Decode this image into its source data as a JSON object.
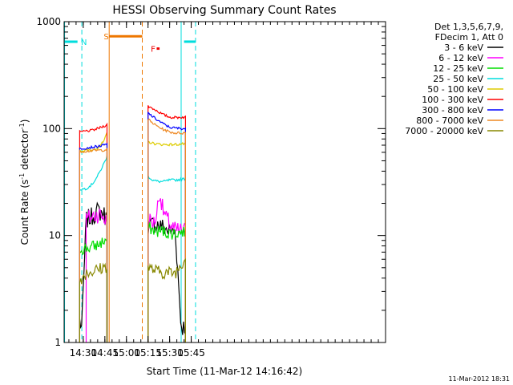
{
  "chart_data": {
    "type": "line",
    "title": "HESSI Observing Summary Count Rates",
    "xlabel": "Start Time (11-Mar-12 14:16:42)",
    "ylabel_prefix": "Count Rate (s",
    "ylabel_sup1": "-1",
    "ylabel_mid": " detector",
    "ylabel_sup2": "-1",
    "ylabel_suffix": ")",
    "yscale": "log",
    "ylim": [
      1,
      1000
    ],
    "xlim_min": [
      856.7,
      1080
    ],
    "xticks": [
      {
        "t": 870,
        "label": "14:30"
      },
      {
        "t": 885,
        "label": "14:45"
      },
      {
        "t": 900,
        "label": "15:00"
      },
      {
        "t": 915,
        "label": "15:15"
      },
      {
        "t": 930,
        "label": "15:30"
      },
      {
        "t": 945,
        "label": "15:45"
      }
    ],
    "yticks": [
      {
        "v": 1,
        "label": "1"
      },
      {
        "v": 10,
        "label": "10"
      },
      {
        "v": 100,
        "label": "100"
      },
      {
        "v": 1000,
        "label": "1000"
      }
    ],
    "legend": {
      "header": [
        "Det 1,3,5,6,7,9,",
        "FDecim 1, Att 0"
      ],
      "placement": "right"
    },
    "series": [
      {
        "name": "3 - 6 keV",
        "color": "#000000",
        "seg1": [
          [
            867.5,
            1.6
          ],
          [
            869,
            1.4
          ],
          [
            872,
            14
          ],
          [
            876,
            15
          ],
          [
            880,
            17
          ],
          [
            884,
            16
          ],
          [
            886.5,
            14
          ]
        ],
        "seg2": [
          [
            915,
            12
          ],
          [
            920,
            13
          ],
          [
            925,
            12
          ],
          [
            930,
            11
          ],
          [
            934,
            11
          ],
          [
            938,
            1.4
          ],
          [
            941,
            1.4
          ]
        ]
      },
      {
        "name": "6 - 12 keV",
        "color": "#ff00ff",
        "seg1": [
          [
            872,
            14
          ],
          [
            876,
            15
          ],
          [
            880,
            16
          ],
          [
            884,
            15
          ],
          [
            886.5,
            13
          ]
        ],
        "seg2": [
          [
            915,
            14
          ],
          [
            919,
            13
          ],
          [
            921,
            16
          ],
          [
            923,
            26
          ],
          [
            925,
            18
          ],
          [
            928,
            14
          ],
          [
            934,
            11
          ],
          [
            941,
            11
          ]
        ]
      },
      {
        "name": "12 - 25 keV",
        "color": "#00dd00",
        "seg1": [
          [
            867.5,
            7.5
          ],
          [
            872,
            7.6
          ],
          [
            876,
            7.8
          ],
          [
            880,
            8.2
          ],
          [
            884,
            8.8
          ],
          [
            886.5,
            9.2
          ]
        ],
        "seg2": [
          [
            915,
            12
          ],
          [
            920,
            11
          ],
          [
            925,
            11
          ],
          [
            930,
            10.5
          ],
          [
            934,
            10.5
          ],
          [
            941,
            11
          ]
        ]
      },
      {
        "name": "25 - 50 keV",
        "color": "#00dddd",
        "seg1": [
          [
            867.5,
            27
          ],
          [
            872,
            27.5
          ],
          [
            876,
            30
          ],
          [
            880,
            36
          ],
          [
            884,
            46
          ],
          [
            886.5,
            55
          ]
        ],
        "seg2": [
          [
            915,
            36
          ],
          [
            918,
            33
          ],
          [
            922,
            32
          ],
          [
            926,
            32
          ],
          [
            930,
            33
          ],
          [
            934,
            33
          ],
          [
            941,
            34
          ]
        ]
      },
      {
        "name": "50 - 100 keV",
        "color": "#ddcc00",
        "seg1": [
          [
            867.5,
            62
          ],
          [
            872,
            62.5
          ],
          [
            876,
            63
          ],
          [
            880,
            66
          ],
          [
            884,
            75
          ],
          [
            886.5,
            90
          ]
        ],
        "seg2": [
          [
            915,
            75
          ],
          [
            920,
            72
          ],
          [
            925,
            71
          ],
          [
            930,
            71
          ],
          [
            934,
            71
          ],
          [
            941,
            72
          ]
        ]
      },
      {
        "name": "100 - 300 keV",
        "color": "#ff0000",
        "seg1": [
          [
            867.5,
            93
          ],
          [
            872,
            95
          ],
          [
            876,
            96
          ],
          [
            880,
            100
          ],
          [
            884,
            105
          ],
          [
            886.5,
            109
          ]
        ],
        "seg2": [
          [
            915,
            162
          ],
          [
            920,
            150
          ],
          [
            925,
            136
          ],
          [
            930,
            128
          ],
          [
            934,
            127
          ],
          [
            941,
            128
          ]
        ]
      },
      {
        "name": "300 - 800 keV",
        "color": "#0000ff",
        "seg1": [
          [
            867.5,
            65
          ],
          [
            872,
            66
          ],
          [
            876,
            67
          ],
          [
            880,
            68
          ],
          [
            884,
            70
          ],
          [
            886.5,
            71
          ]
        ],
        "seg2": [
          [
            915,
            140
          ],
          [
            920,
            124
          ],
          [
            925,
            112
          ],
          [
            930,
            103
          ],
          [
            934,
            101
          ],
          [
            941,
            100
          ]
        ]
      },
      {
        "name": "800 - 7000 keV",
        "color": "#ee8822",
        "seg1": [
          [
            867.5,
            61
          ],
          [
            872,
            61.5
          ],
          [
            876,
            62
          ],
          [
            880,
            62.5
          ],
          [
            884,
            63
          ],
          [
            886.5,
            64
          ]
        ],
        "seg2": [
          [
            915,
            122
          ],
          [
            920,
            108
          ],
          [
            925,
            99
          ],
          [
            930,
            93
          ],
          [
            934,
            91
          ],
          [
            941,
            91
          ]
        ]
      },
      {
        "name": "7000 - 20000 keV",
        "color": "#888800",
        "seg1": [
          [
            867.5,
            3.8
          ],
          [
            872,
            4.5
          ],
          [
            876,
            4.6
          ],
          [
            880,
            4.8
          ],
          [
            884,
            5.0
          ],
          [
            886.5,
            5.2
          ]
        ],
        "seg2": [
          [
            915,
            5.0
          ],
          [
            920,
            4.7
          ],
          [
            925,
            4.5
          ],
          [
            930,
            4.5
          ],
          [
            934,
            4.5
          ],
          [
            941,
            6.2
          ]
        ]
      }
    ],
    "flags": [
      {
        "name": "N",
        "color": "#00dddd",
        "level": 650,
        "solid": [
          [
            857,
            866
          ],
          [
            940,
            948
          ]
        ],
        "dashed_lines": [
          869,
          948
        ],
        "solid_lines": [
          857,
          938
        ],
        "label_t": 870.5
      },
      {
        "name": "S",
        "color": "#ee7700",
        "level": 730,
        "solid": [
          [
            888,
            911
          ]
        ],
        "dashed_lines": [
          911
        ],
        "solid_lines": [
          888
        ],
        "label_t": 886
      },
      {
        "name": "F",
        "color": "#ee0000",
        "level": 560,
        "solid": [
          [
            921,
            923
          ]
        ],
        "label_t": 918.5
      }
    ]
  },
  "footer_date": "11-Mar-2012 18:31"
}
